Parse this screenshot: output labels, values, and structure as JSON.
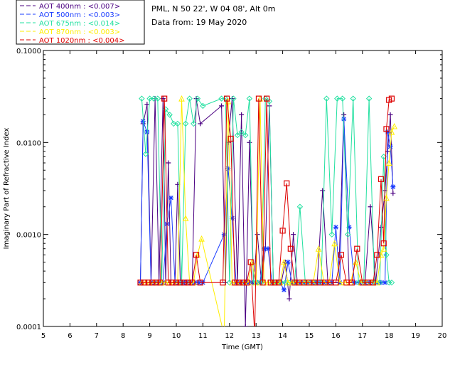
{
  "header": {
    "site_line": "PML, N 50 22', W 04 08', Alt 0m",
    "date_line": "Data from: 19 May 2020"
  },
  "legend": {
    "items": [
      {
        "label": "AOT  400nm : <0.007>",
        "color": "#4b0082",
        "marker": "plus"
      },
      {
        "label": "AOT  500nm : <0.003>",
        "color": "#1a3cff",
        "marker": "asterisk"
      },
      {
        "label": "AOT  675nm : <0.014>",
        "color": "#22e0a0",
        "marker": "diamond"
      },
      {
        "label": "AOT  870nm : <0.003>",
        "color": "#ffee00",
        "marker": "triangle"
      },
      {
        "label": "AOT 1020nm : <0.004>",
        "color": "#dd0000",
        "marker": "square"
      }
    ]
  },
  "chart_data": {
    "type": "line",
    "xlabel": "Time (GMT)",
    "ylabel": "Imaginary Part of Refractive Index",
    "xlim": [
      5,
      20
    ],
    "ylim": [
      0.0001,
      0.1
    ],
    "y_scale": "log",
    "x_ticks": [
      5,
      6,
      7,
      8,
      9,
      10,
      11,
      12,
      13,
      14,
      15,
      16,
      17,
      18,
      19,
      20
    ],
    "y_ticks": [
      {
        "value": 0.0001,
        "label": "0.0001"
      },
      {
        "value": 0.001,
        "label": "0.0010"
      },
      {
        "value": 0.01,
        "label": "0.0100"
      },
      {
        "value": 0.1,
        "label": "0.1000"
      }
    ],
    "grid": false,
    "series": [
      {
        "name": "AOT  400nm : <0.007>",
        "color": "#4b0082",
        "marker": "plus",
        "x": [
          8.65,
          8.75,
          8.9,
          9.05,
          9.2,
          9.35,
          9.5,
          9.6,
          9.7,
          9.8,
          9.95,
          10.05,
          10.15,
          10.3,
          10.45,
          10.6,
          10.75,
          10.9,
          11.7,
          11.85,
          11.95,
          12.1,
          12.3,
          12.45,
          12.6,
          12.75,
          12.9,
          13.05,
          13.2,
          13.35,
          13.5,
          13.65,
          13.8,
          13.95,
          14.1,
          14.25,
          14.4,
          14.55,
          14.7,
          14.9,
          15.1,
          15.3,
          15.5,
          15.7,
          15.9,
          16.1,
          16.3,
          16.5,
          16.7,
          16.9,
          17.1,
          17.3,
          17.5,
          17.7,
          17.85,
          17.95,
          18.05,
          18.15
        ],
        "y": [
          0.0003,
          0.016,
          0.026,
          0.0003,
          0.03,
          0.0003,
          0.03,
          0.0003,
          0.006,
          0.0003,
          0.0003,
          0.0035,
          0.0003,
          0.0003,
          0.0003,
          0.0003,
          0.03,
          0.016,
          0.025,
          0.0003,
          0.01,
          0.03,
          0.0003,
          0.02,
          0.0001,
          0.01,
          0.0003,
          0.001,
          0.0003,
          0.0007,
          0.025,
          0.0003,
          0.0003,
          0.0003,
          0.0005,
          0.0002,
          0.001,
          0.0003,
          0.0003,
          0.0003,
          0.0003,
          0.0003,
          0.003,
          0.0003,
          0.0003,
          0.0003,
          0.02,
          0.0003,
          0.0003,
          0.0003,
          0.0003,
          0.002,
          0.0003,
          0.0012,
          0.003,
          0.008,
          0.02,
          0.0028
        ]
      },
      {
        "name": "AOT  500nm : <0.003>",
        "color": "#1a3cff",
        "marker": "asterisk",
        "x": [
          8.65,
          8.75,
          8.9,
          9.05,
          9.2,
          9.35,
          9.5,
          9.65,
          9.8,
          9.95,
          10.1,
          10.25,
          10.4,
          10.55,
          10.7,
          10.85,
          11.0,
          11.8,
          11.95,
          12.1,
          12.25,
          12.4,
          12.55,
          12.7,
          12.85,
          13.0,
          13.15,
          13.3,
          13.45,
          13.6,
          13.75,
          13.9,
          14.05,
          14.2,
          14.35,
          14.5,
          14.65,
          14.8,
          14.95,
          15.1,
          15.25,
          15.4,
          15.55,
          15.7,
          15.85,
          16.0,
          16.15,
          16.3,
          16.5,
          16.7,
          16.9,
          17.1,
          17.25,
          17.4,
          17.55,
          17.7,
          17.85,
          17.95,
          18.05,
          18.15
        ],
        "y": [
          0.0003,
          0.017,
          0.013,
          0.0003,
          0.0003,
          0.0003,
          0.0003,
          0.0013,
          0.0025,
          0.0003,
          0.0003,
          0.0003,
          0.0003,
          0.0003,
          0.0003,
          0.0003,
          0.0003,
          0.001,
          0.0052,
          0.0015,
          0.0003,
          0.0003,
          0.0003,
          0.0003,
          0.0003,
          0.0003,
          0.0003,
          0.0007,
          0.0007,
          0.0003,
          0.0003,
          0.0003,
          0.00025,
          0.0005,
          0.0003,
          0.0003,
          0.0003,
          0.0003,
          0.0003,
          0.0003,
          0.0003,
          0.0003,
          0.0003,
          0.0003,
          0.0003,
          0.0012,
          0.0003,
          0.018,
          0.0012,
          0.0003,
          0.0003,
          0.0003,
          0.0003,
          0.0003,
          0.0003,
          0.0003,
          0.0003,
          0.013,
          0.009,
          0.0033
        ]
      },
      {
        "name": "AOT  675nm : <0.014>",
        "color": "#22e0a0",
        "marker": "diamond",
        "x": [
          8.7,
          8.85,
          9.0,
          9.15,
          9.3,
          9.45,
          9.6,
          9.75,
          9.9,
          10.05,
          10.2,
          10.35,
          10.5,
          10.65,
          10.8,
          11.0,
          11.7,
          11.85,
          12.0,
          12.15,
          12.3,
          12.45,
          12.6,
          12.75,
          12.9,
          13.05,
          13.2,
          13.35,
          13.5,
          13.65,
          13.8,
          13.95,
          14.1,
          14.25,
          14.45,
          14.65,
          14.85,
          15.05,
          15.25,
          15.45,
          15.65,
          15.85,
          16.05,
          16.25,
          16.45,
          16.65,
          16.85,
          17.05,
          17.25,
          17.45,
          17.65,
          17.8,
          17.9,
          18.0,
          18.1
        ],
        "y": [
          0.03,
          0.0075,
          0.03,
          0.03,
          0.03,
          0.0003,
          0.023,
          0.02,
          0.016,
          0.016,
          0.0003,
          0.016,
          0.03,
          0.016,
          0.03,
          0.025,
          0.03,
          0.03,
          0.0003,
          0.03,
          0.012,
          0.013,
          0.012,
          0.03,
          0.0003,
          0.0003,
          0.0003,
          0.03,
          0.028,
          0.0003,
          0.0003,
          0.0003,
          0.0003,
          0.0003,
          0.0003,
          0.002,
          0.0003,
          0.0003,
          0.0003,
          0.0003,
          0.03,
          0.001,
          0.03,
          0.03,
          0.001,
          0.03,
          0.0003,
          0.0003,
          0.03,
          0.0003,
          0.0003,
          0.007,
          0.0006,
          0.0003,
          0.0003
        ]
      },
      {
        "name": "AOT  870nm : <0.003>",
        "color": "#ffee00",
        "marker": "triangle",
        "x": [
          8.7,
          8.85,
          9.0,
          9.15,
          9.3,
          9.45,
          9.6,
          9.75,
          9.9,
          10.05,
          10.2,
          10.35,
          10.5,
          10.65,
          10.8,
          10.95,
          11.8,
          11.95,
          12.1,
          12.25,
          12.4,
          12.55,
          12.7,
          12.85,
          13.0,
          13.15,
          13.3,
          13.45,
          13.6,
          13.75,
          13.9,
          14.05,
          14.2,
          14.35,
          14.5,
          14.65,
          14.8,
          14.95,
          15.15,
          15.35,
          15.55,
          15.75,
          15.95,
          16.15,
          16.35,
          16.55,
          16.75,
          16.95,
          17.15,
          17.35,
          17.55,
          17.7,
          17.8,
          17.9,
          18.0,
          18.1,
          18.2
        ],
        "y": [
          0.0003,
          0.0003,
          0.0003,
          0.0003,
          0.0003,
          0.0003,
          0.0003,
          0.0003,
          0.0003,
          0.0003,
          0.03,
          0.0015,
          0.0003,
          0.0003,
          0.0006,
          0.0009,
          8e-05,
          0.028,
          0.0003,
          0.0003,
          0.0003,
          0.0003,
          0.0003,
          0.0005,
          0.0003,
          0.03,
          0.0003,
          0.0003,
          0.0003,
          0.0003,
          0.0003,
          0.0005,
          0.0003,
          0.0003,
          0.0003,
          0.0003,
          0.0003,
          0.0003,
          0.0003,
          0.0007,
          0.0003,
          0.0003,
          0.0008,
          0.0003,
          0.0003,
          0.0003,
          0.0005,
          0.0003,
          0.0003,
          0.0003,
          0.0003,
          0.0006,
          0.0007,
          0.0025,
          0.006,
          0.013,
          0.015
        ]
      },
      {
        "name": "AOT 1020nm : <0.004>",
        "color": "#dd0000",
        "marker": "square",
        "x": [
          8.65,
          8.8,
          8.95,
          9.1,
          9.25,
          9.4,
          9.55,
          9.7,
          9.85,
          10.0,
          10.15,
          10.3,
          10.45,
          10.6,
          10.75,
          10.9,
          11.75,
          11.9,
          12.05,
          12.2,
          12.35,
          12.5,
          12.65,
          12.8,
          12.95,
          13.1,
          13.25,
          13.4,
          13.55,
          13.7,
          13.85,
          14.0,
          14.15,
          14.3,
          14.45,
          14.6,
          14.8,
          15.0,
          15.2,
          15.4,
          15.6,
          15.8,
          16.0,
          16.2,
          16.4,
          16.6,
          16.8,
          17.0,
          17.2,
          17.4,
          17.55,
          17.7,
          17.8,
          17.9,
          18.0,
          18.1
        ],
        "y": [
          0.0003,
          0.0003,
          0.0003,
          0.0003,
          0.0003,
          0.0003,
          0.03,
          0.0003,
          0.0003,
          0.0003,
          0.0003,
          0.0003,
          0.0003,
          0.0003,
          0.0006,
          0.0003,
          0.0003,
          0.03,
          0.011,
          0.0003,
          0.0003,
          0.0003,
          0.0003,
          0.0005,
          8e-05,
          0.03,
          0.0003,
          0.03,
          0.0003,
          0.0003,
          0.0003,
          0.0011,
          0.0036,
          0.0007,
          0.0003,
          0.0003,
          0.0003,
          0.0003,
          0.0003,
          0.0003,
          0.0003,
          0.0003,
          0.0003,
          0.0006,
          0.0003,
          0.0003,
          0.0007,
          0.0003,
          0.0003,
          0.0003,
          0.0006,
          0.004,
          0.0008,
          0.014,
          0.029,
          0.03
        ]
      }
    ]
  }
}
